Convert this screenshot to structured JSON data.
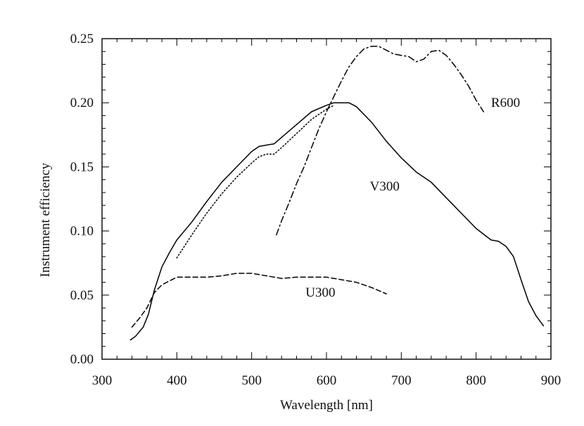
{
  "chart_data": {
    "type": "line",
    "title": "",
    "xlabel": "Wavelength [nm]",
    "ylabel": "Instrument efficiency",
    "xlim": [
      300,
      900
    ],
    "ylim": [
      0.0,
      0.25
    ],
    "x_ticks": [
      300,
      400,
      500,
      600,
      700,
      800,
      900
    ],
    "x_tick_labels": [
      "300",
      "400",
      "500",
      "600",
      "700",
      "800",
      "900"
    ],
    "y_ticks": [
      0.0,
      0.05,
      0.1,
      0.15,
      0.2,
      0.25
    ],
    "y_tick_labels": [
      "0.00",
      "0.05",
      "0.10",
      "0.15",
      "0.20",
      "0.25"
    ],
    "grid": false,
    "series": [
      {
        "name": "V300",
        "label": "V300",
        "style": "solid",
        "x": [
          338,
          345,
          355,
          362,
          370,
          380,
          390,
          400,
          420,
          440,
          460,
          480,
          500,
          510,
          520,
          530,
          540,
          560,
          580,
          600,
          610,
          620,
          630,
          640,
          660,
          680,
          700,
          720,
          740,
          760,
          780,
          800,
          820,
          830,
          840,
          850,
          860,
          870,
          880,
          890
        ],
        "y": [
          0.015,
          0.018,
          0.025,
          0.035,
          0.054,
          0.072,
          0.083,
          0.093,
          0.107,
          0.123,
          0.138,
          0.15,
          0.162,
          0.166,
          0.167,
          0.168,
          0.173,
          0.183,
          0.193,
          0.198,
          0.2,
          0.2,
          0.2,
          0.197,
          0.185,
          0.17,
          0.157,
          0.146,
          0.138,
          0.126,
          0.114,
          0.102,
          0.093,
          0.092,
          0.088,
          0.08,
          0.062,
          0.045,
          0.034,
          0.026
        ]
      },
      {
        "name": "V300-dotted",
        "label": "",
        "style": "dotted",
        "x": [
          400,
          420,
          440,
          460,
          480,
          500,
          510,
          520,
          530,
          540,
          560,
          580,
          600,
          610
        ],
        "y": [
          0.079,
          0.097,
          0.114,
          0.129,
          0.142,
          0.153,
          0.158,
          0.16,
          0.16,
          0.165,
          0.176,
          0.187,
          0.195,
          0.198
        ]
      },
      {
        "name": "U300",
        "label": "U300",
        "style": "dashed",
        "x": [
          340,
          350,
          360,
          370,
          380,
          390,
          400,
          420,
          440,
          460,
          480,
          500,
          520,
          540,
          560,
          580,
          600,
          620,
          640,
          660,
          680
        ],
        "y": [
          0.025,
          0.032,
          0.04,
          0.052,
          0.058,
          0.061,
          0.064,
          0.064,
          0.064,
          0.065,
          0.067,
          0.067,
          0.065,
          0.063,
          0.064,
          0.064,
          0.064,
          0.062,
          0.06,
          0.056,
          0.051
        ]
      },
      {
        "name": "R600",
        "label": "R600",
        "style": "dashdot",
        "x": [
          533,
          540,
          550,
          560,
          570,
          580,
          590,
          600,
          610,
          620,
          630,
          640,
          650,
          660,
          670,
          680,
          690,
          700,
          710,
          720,
          730,
          740,
          750,
          760,
          770,
          780,
          790,
          800,
          810
        ],
        "y": [
          0.097,
          0.108,
          0.122,
          0.137,
          0.15,
          0.165,
          0.18,
          0.193,
          0.205,
          0.217,
          0.228,
          0.236,
          0.242,
          0.244,
          0.244,
          0.241,
          0.238,
          0.237,
          0.236,
          0.232,
          0.234,
          0.24,
          0.241,
          0.237,
          0.23,
          0.222,
          0.213,
          0.202,
          0.193
        ]
      }
    ]
  }
}
